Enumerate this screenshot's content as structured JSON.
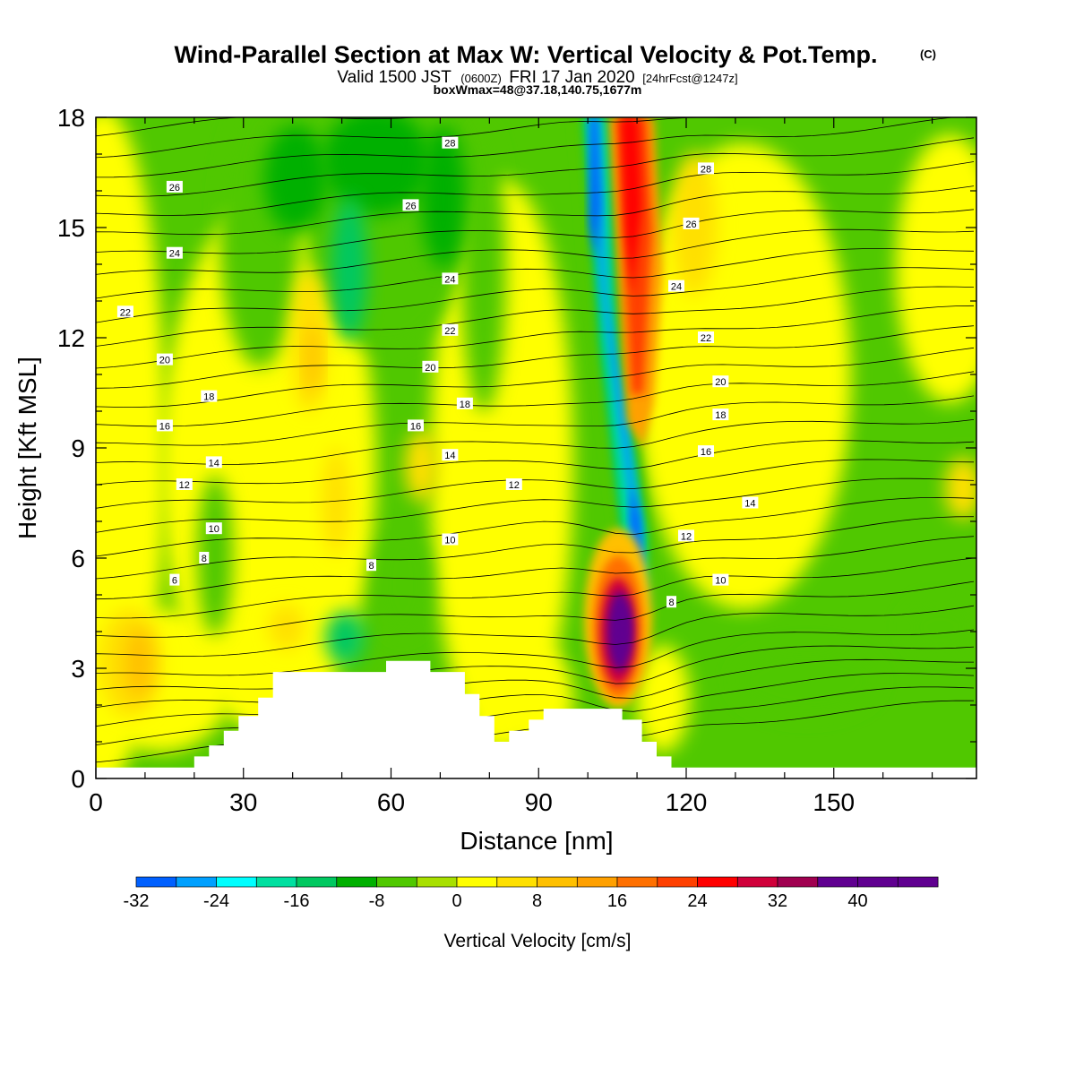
{
  "header": {
    "title": "Wind-Parallel Section at Max W: Vertical Velocity & Pot.Temp.",
    "copyright": "(C)",
    "valid_prefix": "Valid 1500 JST",
    "valid_z": "(0600Z)",
    "valid_date": "FRI 17 Jan 2020",
    "forecast": "[24hrFcst@1247z]",
    "box_note": "boxWmax=48@37.18,140.75,1677m"
  },
  "chart_data": {
    "type": "heatmap",
    "xlabel": "Distance [nm]",
    "ylabel": "Height [Kft MSL]",
    "xlim": [
      0,
      179
    ],
    "ylim": [
      0,
      18
    ],
    "xticks": [
      0,
      30,
      60,
      90,
      120,
      150
    ],
    "yticks": [
      0,
      3,
      6,
      9,
      12,
      15,
      18
    ],
    "colorbar": {
      "label": "Vertical Velocity [cm/s]",
      "min": -32,
      "max": 48,
      "step": 4,
      "tick_values": [
        -32,
        -24,
        -16,
        -8,
        0,
        8,
        16,
        24,
        32,
        40
      ],
      "colors": [
        "#0000ff",
        "#0060ff",
        "#00a0ff",
        "#00ffff",
        "#00e0a0",
        "#00c860",
        "#00b000",
        "#50c800",
        "#a8e000",
        "#ffff00",
        "#ffe000",
        "#ffc000",
        "#ffa000",
        "#ff7000",
        "#ff4000",
        "#ff0000",
        "#d0003a",
        "#a00050",
        "#600090"
      ]
    },
    "theta_contour_labels": [
      {
        "x": 6,
        "y": 12.7,
        "label": "22"
      },
      {
        "x": 16,
        "y": 16.1,
        "label": "26"
      },
      {
        "x": 16,
        "y": 14.3,
        "label": "24"
      },
      {
        "x": 14,
        "y": 11.4,
        "label": "20"
      },
      {
        "x": 23,
        "y": 10.4,
        "label": "18"
      },
      {
        "x": 14,
        "y": 9.6,
        "label": "16"
      },
      {
        "x": 24,
        "y": 8.6,
        "label": "14"
      },
      {
        "x": 18,
        "y": 8.0,
        "label": "12"
      },
      {
        "x": 24,
        "y": 6.8,
        "label": "10"
      },
      {
        "x": 22,
        "y": 6.0,
        "label": "8"
      },
      {
        "x": 16,
        "y": 5.4,
        "label": "6"
      },
      {
        "x": 72,
        "y": 17.3,
        "label": "28"
      },
      {
        "x": 64,
        "y": 15.6,
        "label": "26"
      },
      {
        "x": 72,
        "y": 13.6,
        "label": "24"
      },
      {
        "x": 72,
        "y": 12.2,
        "label": "22"
      },
      {
        "x": 68,
        "y": 11.2,
        "label": "20"
      },
      {
        "x": 75,
        "y": 10.2,
        "label": "18"
      },
      {
        "x": 65,
        "y": 9.6,
        "label": "16"
      },
      {
        "x": 72,
        "y": 8.8,
        "label": "14"
      },
      {
        "x": 85,
        "y": 8.0,
        "label": "12"
      },
      {
        "x": 72,
        "y": 6.5,
        "label": "10"
      },
      {
        "x": 56,
        "y": 5.8,
        "label": "8"
      },
      {
        "x": 124,
        "y": 16.6,
        "label": "28"
      },
      {
        "x": 121,
        "y": 15.1,
        "label": "26"
      },
      {
        "x": 118,
        "y": 13.4,
        "label": "24"
      },
      {
        "x": 124,
        "y": 12.0,
        "label": "22"
      },
      {
        "x": 127,
        "y": 10.8,
        "label": "20"
      },
      {
        "x": 127,
        "y": 9.9,
        "label": "18"
      },
      {
        "x": 124,
        "y": 8.9,
        "label": "16"
      },
      {
        "x": 133,
        "y": 7.5,
        "label": "14"
      },
      {
        "x": 120,
        "y": 6.6,
        "label": "12"
      },
      {
        "x": 127,
        "y": 5.4,
        "label": "10"
      },
      {
        "x": 117,
        "y": 4.8,
        "label": "8"
      }
    ],
    "vertical_velocity_features": [
      {
        "kind": "updraft",
        "x": 105,
        "y": 4.0,
        "value": 48
      },
      {
        "kind": "downdraft",
        "x": 110,
        "y": 6.5,
        "value": -28
      },
      {
        "kind": "downdraft",
        "x": 100,
        "y": 17.0,
        "value": -28
      },
      {
        "kind": "updraft",
        "x": 110,
        "y": 16.0,
        "value": 20
      }
    ],
    "terrain": [
      [
        0,
        0.3
      ],
      [
        20,
        0.3
      ],
      [
        20,
        0.6
      ],
      [
        23,
        0.6
      ],
      [
        23,
        0.9
      ],
      [
        26,
        0.9
      ],
      [
        26,
        1.3
      ],
      [
        29,
        1.3
      ],
      [
        29,
        1.7
      ],
      [
        33,
        1.7
      ],
      [
        33,
        2.2
      ],
      [
        36,
        2.2
      ],
      [
        36,
        2.9
      ],
      [
        59,
        2.9
      ],
      [
        59,
        3.2
      ],
      [
        68,
        3.2
      ],
      [
        68,
        2.9
      ],
      [
        75,
        2.9
      ],
      [
        75,
        2.3
      ],
      [
        78,
        2.3
      ],
      [
        78,
        1.7
      ],
      [
        81,
        1.7
      ],
      [
        81,
        1.0
      ],
      [
        84,
        1.0
      ],
      [
        84,
        1.3
      ],
      [
        88,
        1.3
      ],
      [
        88,
        1.6
      ],
      [
        91,
        1.6
      ],
      [
        91,
        1.9
      ],
      [
        107,
        1.9
      ],
      [
        107,
        1.6
      ],
      [
        111,
        1.6
      ],
      [
        111,
        1.0
      ],
      [
        114,
        1.0
      ],
      [
        114,
        0.6
      ],
      [
        117,
        0.6
      ],
      [
        117,
        0.3
      ],
      [
        179,
        0.3
      ]
    ]
  }
}
